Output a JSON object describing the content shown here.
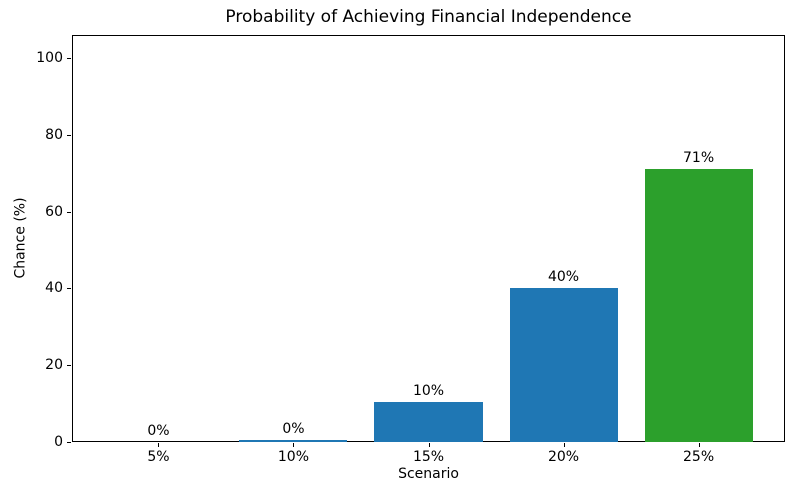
{
  "chart_data": {
    "type": "bar",
    "title": "Probability of Achieving Financial Independence",
    "xlabel": "Scenario",
    "ylabel": "Chance (%)",
    "categories": [
      "5%",
      "10%",
      "15%",
      "20%",
      "25%"
    ],
    "values": [
      0,
      0.4,
      10.4,
      40,
      71
    ],
    "bar_labels": [
      "0%",
      "0%",
      "10%",
      "40%",
      "71%"
    ],
    "bar_colors": [
      "#1f77b4",
      "#1f77b4",
      "#1f77b4",
      "#1f77b4",
      "#2ca02c"
    ],
    "y_ticks": [
      0,
      20,
      40,
      60,
      80,
      100
    ],
    "ylim": [
      0,
      106
    ],
    "grid": false,
    "legend_position": "none",
    "colors": {
      "bar_blue": "#1f77b4",
      "bar_green": "#2ca02c",
      "axis": "#000000",
      "background": "#ffffff"
    }
  }
}
